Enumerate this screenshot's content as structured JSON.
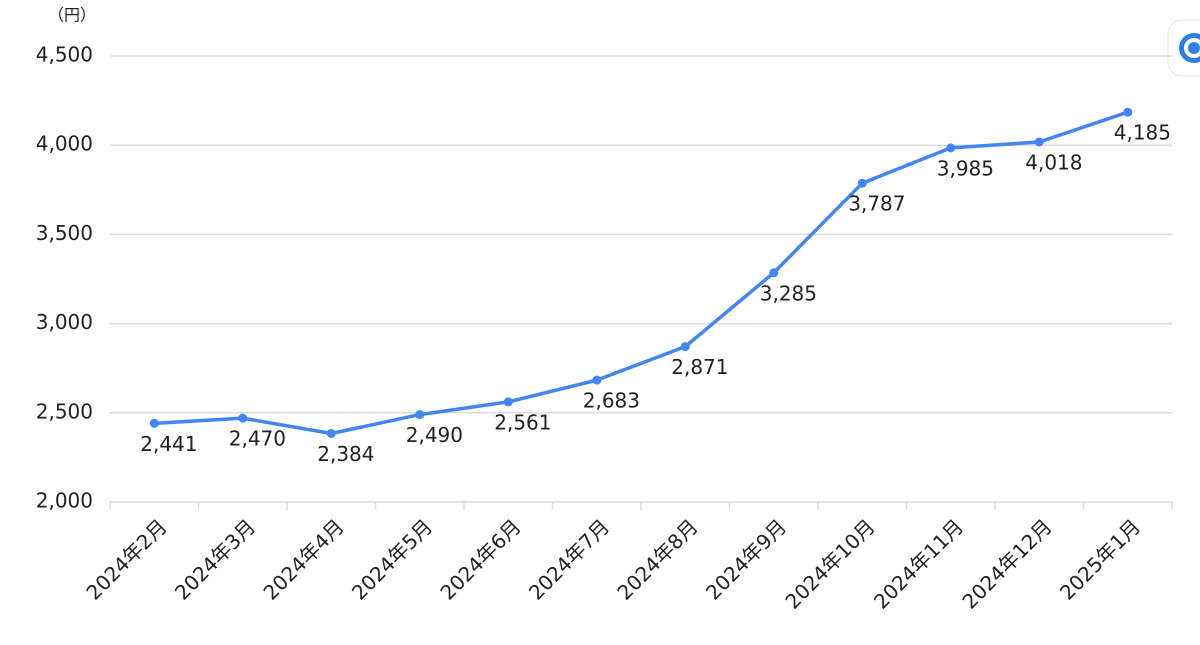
{
  "chart_data": {
    "type": "line",
    "y_unit": "（円）",
    "categories": [
      "2024年2月",
      "2024年3月",
      "2024年4月",
      "2024年5月",
      "2024年6月",
      "2024年7月",
      "2024年8月",
      "2024年9月",
      "2024年10月",
      "2024年11月",
      "2024年12月",
      "2025年1月"
    ],
    "values": [
      2441,
      2470,
      2384,
      2490,
      2561,
      2683,
      2871,
      3285,
      3787,
      3985,
      4018,
      4185
    ],
    "value_labels": [
      "2,441",
      "2,470",
      "2,384",
      "2,490",
      "2,561",
      "2,683",
      "2,871",
      "3,285",
      "3,787",
      "3,985",
      "4,018",
      "4,185"
    ],
    "color": "#4285f4",
    "ylim": [
      2000,
      4500
    ],
    "yticks": [
      {
        "value": 2000,
        "label": "2,000"
      },
      {
        "value": 2500,
        "label": "2,500"
      },
      {
        "value": 3000,
        "label": "3,000"
      },
      {
        "value": 3500,
        "label": "3,500"
      },
      {
        "value": 4000,
        "label": "4,000"
      },
      {
        "value": 4500,
        "label": "4,500"
      }
    ],
    "grid": true
  }
}
